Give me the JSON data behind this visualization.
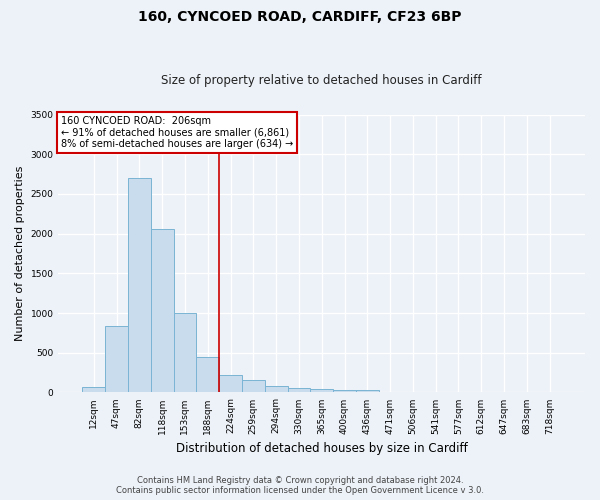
{
  "title1": "160, CYNCOED ROAD, CARDIFF, CF23 6BP",
  "title2": "Size of property relative to detached houses in Cardiff",
  "xlabel": "Distribution of detached houses by size in Cardiff",
  "ylabel": "Number of detached properties",
  "categories": [
    "12sqm",
    "47sqm",
    "82sqm",
    "118sqm",
    "153sqm",
    "188sqm",
    "224sqm",
    "259sqm",
    "294sqm",
    "330sqm",
    "365sqm",
    "400sqm",
    "436sqm",
    "471sqm",
    "506sqm",
    "541sqm",
    "577sqm",
    "612sqm",
    "647sqm",
    "683sqm",
    "718sqm"
  ],
  "values": [
    70,
    840,
    2700,
    2060,
    1000,
    450,
    215,
    160,
    80,
    55,
    40,
    35,
    30,
    0,
    0,
    0,
    0,
    0,
    0,
    0,
    0
  ],
  "bar_color": "#c9dced",
  "bar_edge_color": "#7ab4d4",
  "vline_x_idx": 6,
  "vline_color": "#cc0000",
  "annotation_line1": "160 CYNCOED ROAD:  206sqm",
  "annotation_line2": "← 91% of detached houses are smaller (6,861)",
  "annotation_line3": "8% of semi-detached houses are larger (634) →",
  "annotation_box_color": "#ffffff",
  "annotation_box_edge_color": "#cc0000",
  "ylim": [
    0,
    3500
  ],
  "yticks": [
    0,
    500,
    1000,
    1500,
    2000,
    2500,
    3000,
    3500
  ],
  "footer1": "Contains HM Land Registry data © Crown copyright and database right 2024.",
  "footer2": "Contains public sector information licensed under the Open Government Licence v 3.0.",
  "background_color": "#edf2f8",
  "grid_color": "#ffffff",
  "title1_fontsize": 10,
  "title2_fontsize": 8.5,
  "ylabel_fontsize": 8,
  "xlabel_fontsize": 8.5,
  "tick_fontsize": 6.5,
  "annotation_fontsize": 7,
  "footer_fontsize": 6
}
